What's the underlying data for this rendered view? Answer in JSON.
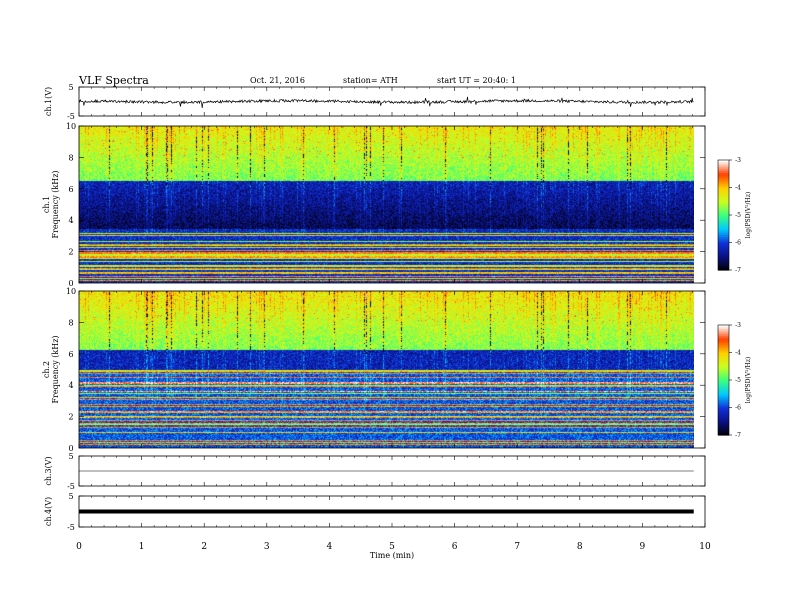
{
  "header": {
    "title": "VLF Spectra",
    "date": "Oct. 21, 2016",
    "station": "station= ATH",
    "start": "start UT = 20:40: 1"
  },
  "colors": {
    "colormap": [
      "#000000",
      "#0a1080",
      "#1030d8",
      "#00c8ff",
      "#38ff80",
      "#c8ff20",
      "#ffd000",
      "#ff4000",
      "#ffffff"
    ],
    "trace": "#000000"
  },
  "chart_data": [
    {
      "type": "line",
      "id": "ch1",
      "ylabel": "ch.1(V)",
      "ylim": [
        -5,
        5
      ],
      "yticks": [
        "5",
        "-5"
      ],
      "xlim": [
        0,
        10
      ],
      "baseline": 0,
      "note_series": "noisy waveform near 0 V"
    },
    {
      "type": "heatmap",
      "id": "ch1_spectrogram",
      "ylabel": [
        "ch.1",
        "Frequency (kHz)"
      ],
      "ylim": [
        0,
        10
      ],
      "yticks": [
        "0",
        "2",
        "4",
        "6",
        "8",
        "10"
      ],
      "xlim": [
        0,
        9.82
      ],
      "colorbar": {
        "label": "log(PSD(V²/Hz)",
        "range": [
          -7,
          -3
        ],
        "ticks": [
          "-3",
          "-4",
          "-5",
          "-6",
          "-7"
        ]
      }
    },
    {
      "type": "heatmap",
      "id": "ch2_spectrogram",
      "ylabel": [
        "ch.2",
        "Frequency (kHz)"
      ],
      "ylim": [
        0,
        10
      ],
      "yticks": [
        "0",
        "2",
        "4",
        "6",
        "8",
        "10"
      ],
      "xlim": [
        0,
        9.82
      ],
      "colorbar": {
        "label": "log(PSD(V²/Hz)",
        "range": [
          -7,
          -3
        ],
        "ticks": [
          "-3",
          "-4",
          "-5",
          "-6",
          "-7"
        ]
      }
    },
    {
      "type": "line",
      "id": "ch3",
      "ylabel": "ch.3(V)",
      "ylim": [
        -5,
        5
      ],
      "yticks": [
        "5",
        "-5"
      ],
      "baseline": 0
    },
    {
      "type": "line",
      "id": "ch4",
      "ylabel": "ch.4(V)",
      "ylim": [
        -5,
        5
      ],
      "yticks": [
        "5",
        "-5"
      ],
      "baseline": 0
    }
  ],
  "xaxis": {
    "label": "Time (min)",
    "ticks": [
      "0",
      "1",
      "2",
      "3",
      "4",
      "5",
      "6",
      "7",
      "8",
      "9",
      "10"
    ],
    "range": [
      0,
      10
    ]
  }
}
